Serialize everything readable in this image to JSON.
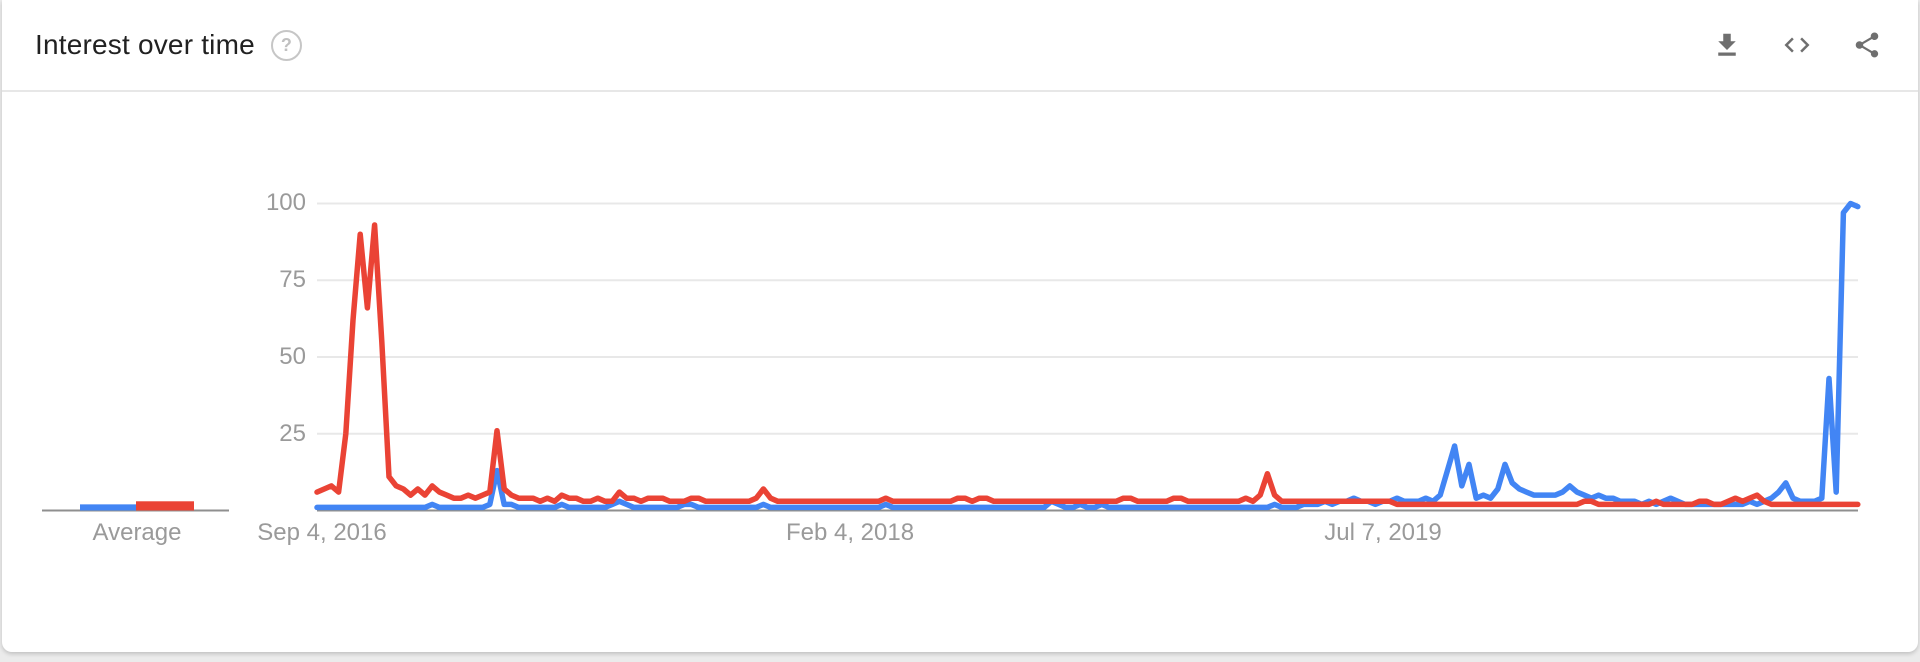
{
  "header": {
    "title": "Interest over time",
    "help_glyph": "?",
    "actions": {
      "download": "download-icon",
      "embed": "embed-code-icon",
      "share": "share-icon"
    }
  },
  "legend": {
    "label": "Average"
  },
  "axes": {
    "y_ticks": [
      "100",
      "75",
      "50",
      "25"
    ],
    "x_ticks": [
      "Sep 4, 2016",
      "Feb 4, 2018",
      "Jul 7, 2019"
    ]
  },
  "chart_data": {
    "type": "line",
    "title": "Interest over time",
    "xlabel": "",
    "ylabel": "",
    "ylim": [
      0,
      100
    ],
    "y_gridlines": [
      25,
      50,
      75,
      100
    ],
    "grid": true,
    "legend_label": "Average",
    "x_axis": {
      "unit": "weeks",
      "tick_labels": [
        "Sep 4, 2016",
        "Feb 4, 2018",
        "Jul 7, 2019"
      ],
      "tick_week_indices": [
        0,
        74,
        148
      ],
      "total_points": 215
    },
    "series": [
      {
        "name": "blue-series",
        "color": "#4285f4",
        "average": 2,
        "values": [
          1,
          1,
          1,
          1,
          1,
          1,
          1,
          1,
          1,
          1,
          1,
          1,
          1,
          1,
          1,
          1,
          2,
          1,
          1,
          1,
          1,
          1,
          1,
          1,
          2,
          13,
          2,
          2,
          1,
          1,
          1,
          1,
          1,
          1,
          2,
          1,
          1,
          1,
          1,
          1,
          1,
          2,
          3,
          2,
          1,
          1,
          1,
          1,
          1,
          1,
          1,
          2,
          2,
          1,
          1,
          1,
          1,
          1,
          1,
          1,
          1,
          1,
          2,
          1,
          1,
          1,
          1,
          1,
          1,
          1,
          1,
          1,
          1,
          1,
          1,
          1,
          1,
          1,
          1,
          2,
          1,
          1,
          1,
          1,
          1,
          1,
          1,
          1,
          1,
          1,
          1,
          1,
          1,
          1,
          1,
          1,
          1,
          1,
          1,
          1,
          1,
          1,
          3,
          2,
          1,
          1,
          2,
          1,
          1,
          2,
          1,
          1,
          1,
          1,
          1,
          1,
          1,
          1,
          1,
          1,
          1,
          1,
          1,
          1,
          1,
          1,
          1,
          1,
          1,
          1,
          1,
          1,
          1,
          2,
          1,
          1,
          1,
          2,
          2,
          2,
          3,
          2,
          3,
          3,
          4,
          3,
          3,
          2,
          3,
          3,
          4,
          3,
          3,
          3,
          4,
          3,
          5,
          13,
          21,
          8,
          15,
          4,
          5,
          4,
          7,
          15,
          9,
          7,
          6,
          5,
          5,
          5,
          5,
          6,
          8,
          6,
          5,
          4,
          5,
          4,
          4,
          3,
          3,
          3,
          2,
          3,
          2,
          3,
          4,
          3,
          2,
          2,
          2,
          2,
          2,
          2,
          2,
          2,
          2,
          3,
          2,
          3,
          4,
          6,
          9,
          4,
          3,
          3,
          3,
          4,
          43,
          6,
          97,
          100,
          99
        ]
      },
      {
        "name": "red-series",
        "color": "#ea4335",
        "average": 3,
        "values": [
          6,
          7,
          8,
          6,
          25,
          62,
          90,
          66,
          93,
          55,
          11,
          8,
          7,
          5,
          7,
          5,
          8,
          6,
          5,
          4,
          4,
          5,
          4,
          5,
          6,
          26,
          7,
          5,
          4,
          4,
          4,
          3,
          4,
          3,
          5,
          4,
          4,
          3,
          3,
          4,
          3,
          3,
          6,
          4,
          4,
          3,
          4,
          4,
          4,
          3,
          3,
          3,
          4,
          4,
          3,
          3,
          3,
          3,
          3,
          3,
          3,
          4,
          7,
          4,
          3,
          3,
          3,
          3,
          3,
          3,
          3,
          3,
          3,
          3,
          3,
          3,
          3,
          3,
          3,
          4,
          3,
          3,
          3,
          3,
          3,
          3,
          3,
          3,
          3,
          4,
          4,
          3,
          4,
          4,
          3,
          3,
          3,
          3,
          3,
          3,
          3,
          3,
          3,
          3,
          3,
          3,
          3,
          3,
          3,
          3,
          3,
          3,
          4,
          4,
          3,
          3,
          3,
          3,
          3,
          4,
          4,
          3,
          3,
          3,
          3,
          3,
          3,
          3,
          3,
          4,
          3,
          5,
          12,
          5,
          3,
          3,
          3,
          3,
          3,
          3,
          3,
          3,
          3,
          3,
          3,
          3,
          3,
          3,
          3,
          3,
          2,
          2,
          2,
          2,
          2,
          2,
          2,
          2,
          2,
          2,
          2,
          2,
          2,
          2,
          2,
          2,
          2,
          2,
          2,
          2,
          2,
          2,
          2,
          2,
          2,
          2,
          3,
          3,
          2,
          2,
          2,
          2,
          2,
          2,
          2,
          2,
          3,
          2,
          2,
          2,
          2,
          2,
          3,
          3,
          2,
          2,
          3,
          4,
          3,
          4,
          5,
          3,
          2,
          2,
          2,
          2,
          2,
          2,
          2,
          2,
          2,
          2,
          2,
          2,
          2
        ]
      }
    ]
  },
  "colors": {
    "blue": "#4285f4",
    "red": "#ea4335",
    "grid": "#e8e8e8",
    "axis_line": "#8f8f8f",
    "axis_text": "#9a9a9a",
    "icon": "#6f6f6f",
    "title_text": "#212121"
  }
}
